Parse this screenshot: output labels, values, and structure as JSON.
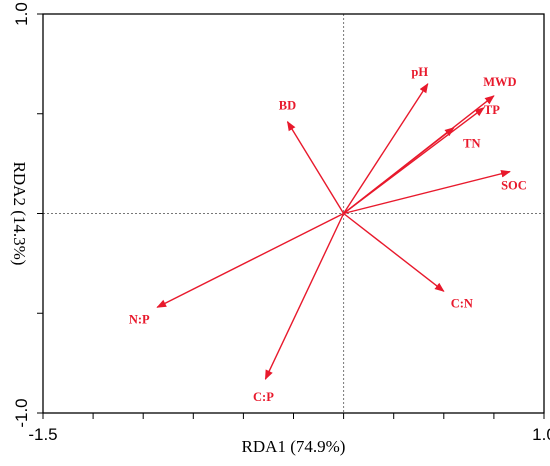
{
  "chart_data": {
    "type": "scatter",
    "subtype": "rda-biplot-arrows",
    "title": "",
    "xlabel": "RDA1 (74.9%)",
    "ylabel": "RDA2 (14.3%)",
    "xlim": [
      -1.5,
      1.0
    ],
    "ylim": [
      -1.0,
      1.0
    ],
    "x_tick_labels": [
      {
        "value": -1.5,
        "label": "-1.5"
      },
      {
        "value": 1.0,
        "label": "1.0"
      }
    ],
    "y_tick_labels": [
      {
        "value": 1.0,
        "label": "1.0"
      },
      {
        "value": -1.0,
        "label": "-1.0"
      }
    ],
    "x_minor_ticks": [
      -1.5,
      -1.25,
      -1.0,
      -0.75,
      -0.5,
      -0.25,
      0,
      0.25,
      0.5,
      0.75,
      1.0
    ],
    "y_minor_ticks": [
      -1.0,
      -0.5,
      0,
      0.5,
      1.0
    ],
    "reference_lines": {
      "x": 0,
      "y": 0,
      "style": "dotted"
    },
    "vector_color": "#e8192c",
    "vectors": [
      {
        "name": "pH",
        "x": 0.42,
        "y": 0.65
      },
      {
        "name": "MWD",
        "x": 0.75,
        "y": 0.59
      },
      {
        "name": "TP",
        "x": 0.7,
        "y": 0.53
      },
      {
        "name": "TN",
        "x": 0.55,
        "y": 0.43
      },
      {
        "name": "SOC",
        "x": 0.83,
        "y": 0.21
      },
      {
        "name": "BD",
        "x": -0.28,
        "y": 0.46
      },
      {
        "name": "C:N",
        "x": 0.5,
        "y": -0.39
      },
      {
        "name": "N:P",
        "x": -0.93,
        "y": -0.47
      },
      {
        "name": "C:P",
        "x": -0.39,
        "y": -0.83
      }
    ]
  }
}
